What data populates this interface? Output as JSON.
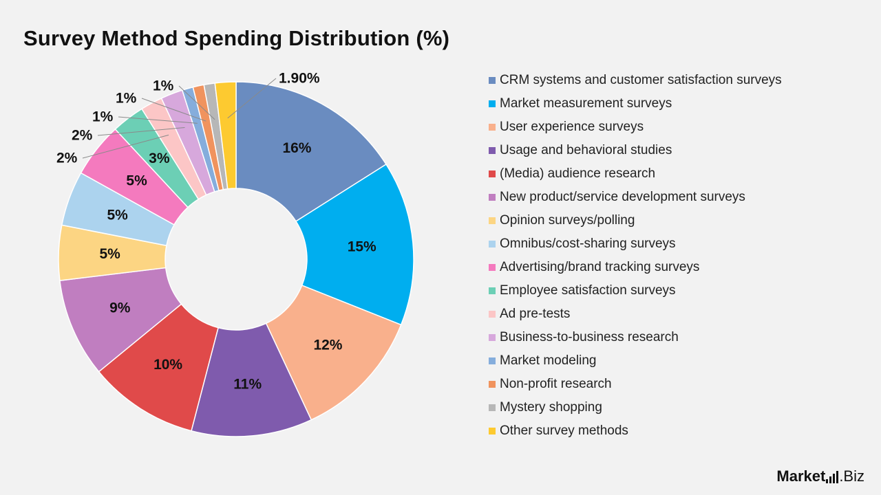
{
  "title": "Survey Method Spending Distribution (%)",
  "brand": {
    "name_bold": "Market",
    "name_rest": ".Biz"
  },
  "chart_data": {
    "type": "pie",
    "donut": true,
    "title": "Survey Method Spending Distribution (%)",
    "legend_position": "right",
    "slices": [
      {
        "label": "CRM systems and customer satisfaction surveys",
        "value": 16,
        "display": "16%",
        "color": "#6a8cc0"
      },
      {
        "label": "Market measurement surveys",
        "value": 15,
        "display": "15%",
        "color": "#00aeef"
      },
      {
        "label": "User experience surveys",
        "value": 12,
        "display": "12%",
        "color": "#f9b08c"
      },
      {
        "label": "Usage and behavioral studies",
        "value": 11,
        "display": "11%",
        "color": "#7f5bad"
      },
      {
        "label": "(Media) audience research",
        "value": 10,
        "display": "10%",
        "color": "#e04a4a"
      },
      {
        "label": "New product/service development surveys",
        "value": 9,
        "display": "9%",
        "color": "#c07ec0"
      },
      {
        "label": "Opinion surveys/polling",
        "value": 5,
        "display": "5%",
        "color": "#fcd583"
      },
      {
        "label": "Omnibus/cost-sharing surveys",
        "value": 5,
        "display": "5%",
        "color": "#acd3ee"
      },
      {
        "label": "Advertising/brand tracking surveys",
        "value": 5,
        "display": "5%",
        "color": "#f47abe"
      },
      {
        "label": "Employee satisfaction surveys",
        "value": 3,
        "display": "3%",
        "color": "#6ccfb5"
      },
      {
        "label": "Ad pre-tests",
        "value": 2,
        "display": "2%",
        "color": "#fcc6c6"
      },
      {
        "label": "Business-to-business research",
        "value": 2,
        "display": "2%",
        "color": "#d7a8dc"
      },
      {
        "label": "Market modeling",
        "value": 1,
        "display": "1%",
        "color": "#85addc"
      },
      {
        "label": "Non-profit research",
        "value": 1,
        "display": "1%",
        "color": "#f0935e"
      },
      {
        "label": "Mystery shopping",
        "value": 1,
        "display": "1%",
        "color": "#b7b7b7"
      },
      {
        "label": "Other survey methods",
        "value": 1.9,
        "display": "1.90%",
        "color": "#fdca30"
      }
    ]
  }
}
